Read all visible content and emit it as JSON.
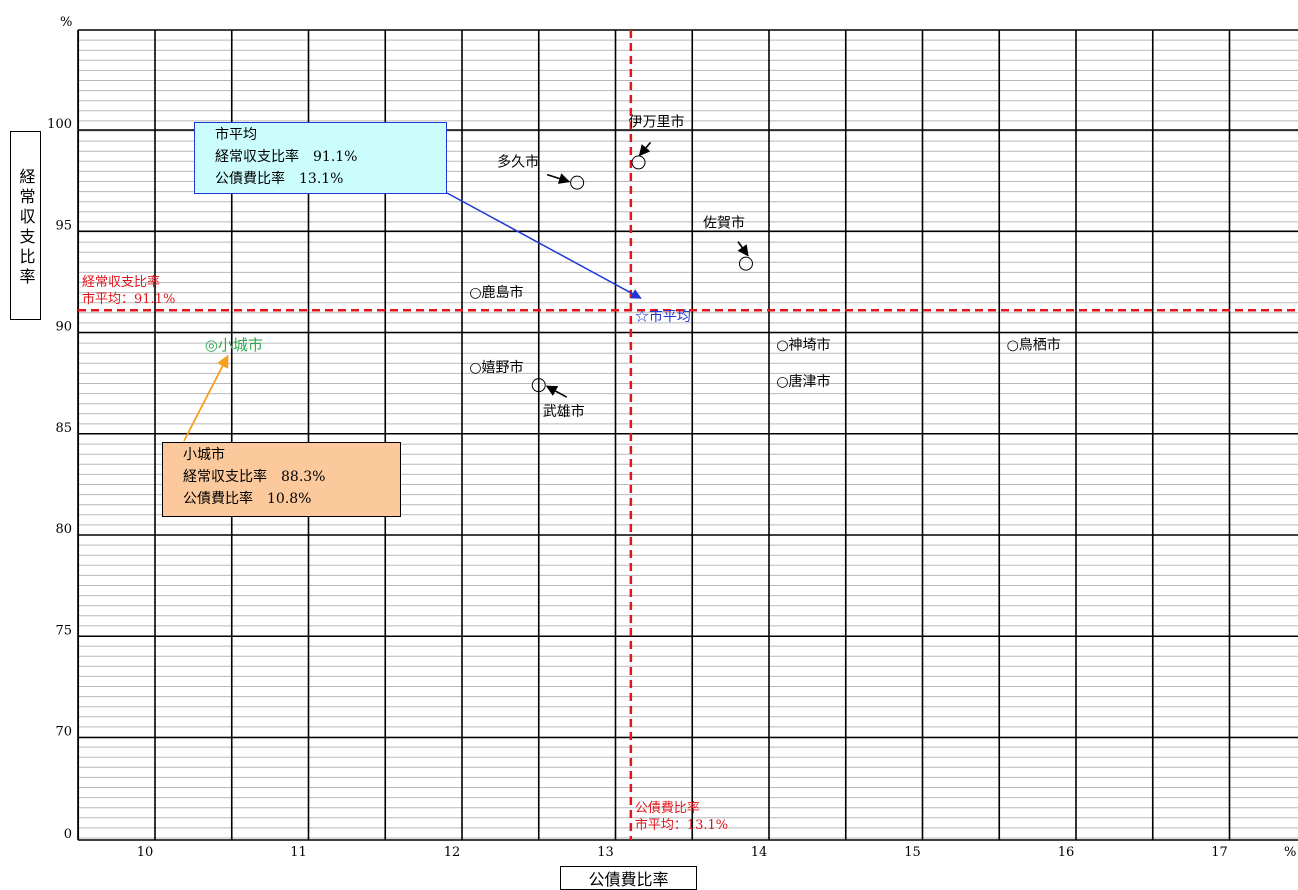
{
  "chart_data": {
    "type": "scatter",
    "xlabel": "公債費比率",
    "ylabel": "経常収支比率",
    "x_unit": "%",
    "y_unit": "%",
    "xlim": [
      9.5,
      17.5
    ],
    "xticks": [
      10,
      11,
      12,
      13,
      14,
      15,
      16,
      17
    ],
    "yticks": [
      0,
      70,
      75,
      80,
      85,
      90,
      95,
      100
    ],
    "y_axis_break": true,
    "grid": true,
    "points": [
      {
        "label": "伊万里市",
        "x": 13.15,
        "y": 98.4,
        "marker": "○"
      },
      {
        "label": "多久市",
        "x": 12.75,
        "y": 97.4,
        "marker": "○"
      },
      {
        "label": "佐賀市",
        "x": 13.85,
        "y": 93.4,
        "marker": "○"
      },
      {
        "label": "鹿島市",
        "x": 12.1,
        "y": 92.0,
        "marker": "○"
      },
      {
        "label": "神埼市",
        "x": 14.1,
        "y": 89.4,
        "marker": "○"
      },
      {
        "label": "鳥栖市",
        "x": 15.6,
        "y": 89.4,
        "marker": "○"
      },
      {
        "label": "嬉野市",
        "x": 12.1,
        "y": 88.3,
        "marker": "○"
      },
      {
        "label": "武雄市",
        "x": 12.5,
        "y": 87.4,
        "marker": "○"
      },
      {
        "label": "唐津市",
        "x": 14.1,
        "y": 87.6,
        "marker": "○"
      },
      {
        "label": "小城市",
        "x": 10.8,
        "y": 88.3,
        "marker": "◎",
        "highlight": true,
        "color": "#2fa84f"
      },
      {
        "label": "市平均",
        "x": 13.1,
        "y": 91.1,
        "marker": "☆",
        "color": "#1f39d6"
      }
    ],
    "reference_lines": [
      {
        "axis": "y",
        "value": 91.1,
        "label_lines": [
          "経常収支比率",
          "市平均：91.1%"
        ],
        "color": "#e3141b"
      },
      {
        "axis": "x",
        "value": 13.1,
        "label_lines": [
          "公債費比率",
          "市平均：13.1%"
        ],
        "color": "#e3141b"
      }
    ],
    "callouts": [
      {
        "title": "市平均",
        "rows": [
          "経常収支比率　91.1%",
          "公債費比率　13.1%"
        ]
      },
      {
        "title": "小城市",
        "rows": [
          "経常収支比率　88.3%",
          "公債費比率　10.8%"
        ]
      }
    ]
  },
  "colors": {
    "average_line": "#e3141b",
    "average_box_fill": "#ccfdfd",
    "average_box_border": "#1f39d6",
    "ogi_box_fill": "#fcc99c",
    "ogi_marker": "#2fa84f",
    "avg_arrow": "#1f39d6",
    "ogi_arrow": "#f5a01e"
  }
}
